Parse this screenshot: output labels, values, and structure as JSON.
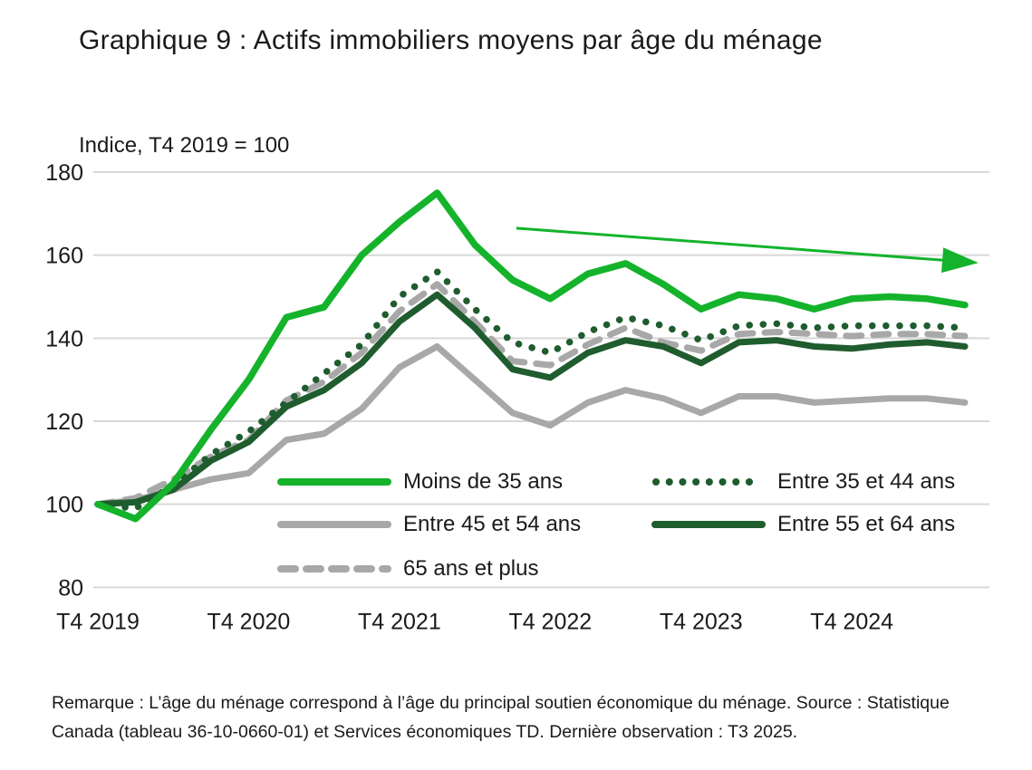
{
  "title": "Graphique 9 : Actifs immobiliers moyens par âge du ménage",
  "subtitle": "Indice, T4 2019 = 100",
  "footer": "Remarque : L’âge du ménage correspond à l’âge du principal soutien économique du ménage. Source : Statistique Canada (tableau 36-10-0660-01) et Services économiques TD. Dernière observation : T3 2025.",
  "colors": {
    "bright_green": "#14b32b",
    "dark_green": "#1f5c2e",
    "gray": "#a8a8a8",
    "gridline": "#d8d8d8",
    "text": "#1a1a1a"
  },
  "chart_data": {
    "type": "line",
    "x": [
      "T4 2019",
      "T1 2020",
      "T2 2020",
      "T3 2020",
      "T4 2020",
      "T1 2021",
      "T2 2021",
      "T3 2021",
      "T4 2021",
      "T1 2022",
      "T2 2022",
      "T3 2022",
      "T4 2022",
      "T1 2023",
      "T2 2023",
      "T3 2023",
      "T4 2023",
      "T1 2024",
      "T2 2024",
      "T3 2024",
      "T4 2024",
      "T1 2025",
      "T2 2025",
      "T3 2025"
    ],
    "x_tick_labels": [
      "T4 2019",
      "T4 2020",
      "T4 2021",
      "T4 2022",
      "T4 2023",
      "T4 2024"
    ],
    "x_tick_indices": [
      0,
      4,
      8,
      12,
      16,
      20
    ],
    "yticks": [
      180,
      160,
      140,
      120,
      100,
      80
    ],
    "ylim": [
      80,
      180
    ],
    "grid": true,
    "legend_position": "inside-bottom",
    "series": [
      {
        "name": "Moins de 35 ans",
        "style": "solid",
        "color": "#14b32b",
        "values": [
          100,
          96.5,
          105,
          118,
          130,
          145,
          147.5,
          160,
          168,
          175,
          162.5,
          154,
          149.5,
          155.5,
          158,
          153,
          147,
          150.5,
          149.5,
          147,
          149.5,
          150,
          149.5,
          148
        ]
      },
      {
        "name": "Entre 35 et 44 ans",
        "style": "dotted",
        "color": "#1f5c2e",
        "values": [
          100,
          99,
          104.5,
          112,
          117.5,
          124.5,
          131.5,
          138.5,
          150,
          156,
          147,
          139,
          136.5,
          141.5,
          145,
          143,
          139.5,
          143,
          143.5,
          142.5,
          143,
          143,
          143,
          142.5
        ]
      },
      {
        "name": "Entre 45 et 54 ans",
        "style": "solid",
        "color": "#a8a8a8",
        "values": [
          100,
          101,
          103.5,
          106,
          107.5,
          115.5,
          117,
          123,
          133,
          138,
          130,
          122,
          119,
          124.5,
          127.5,
          125.5,
          122,
          126,
          126,
          124.5,
          125,
          125.5,
          125.5,
          124.5
        ]
      },
      {
        "name": "Entre 55 et 64 ans",
        "style": "solid",
        "color": "#1f5c2e",
        "values": [
          100,
          100.5,
          103.5,
          110.5,
          115,
          123.5,
          127.5,
          134,
          144,
          150.5,
          142.5,
          132.5,
          130.5,
          136.5,
          139.5,
          138,
          134,
          139,
          139.5,
          138,
          137.5,
          138.5,
          139,
          138
        ]
      },
      {
        "name": "65 ans et plus",
        "style": "dashed",
        "color": "#a8a8a8",
        "values": [
          100,
          101.5,
          106,
          111.5,
          115.5,
          125,
          129.5,
          136.5,
          146.5,
          153,
          144,
          134.5,
          133.5,
          138.5,
          142.5,
          139,
          137,
          141,
          141.5,
          141,
          140.5,
          141,
          141,
          140.5
        ]
      }
    ],
    "annotation_arrow": {
      "from": {
        "x_index": 11.1,
        "value": 166.5
      },
      "to": {
        "x_index": 22.4,
        "value": 158.8
      },
      "color": "#14b32b"
    },
    "last_observation": "T3 2025"
  }
}
